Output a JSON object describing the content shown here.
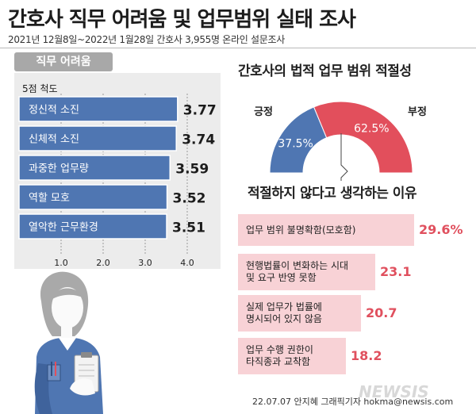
{
  "header": {
    "title": "간호사 직무 어려움 및 업무범위 실태 조사",
    "subtitle": "2021년 12월8일~2022년 1월28일 간호사 3,955명 온라인 설문조사"
  },
  "chart_data": [
    {
      "type": "bar",
      "title": "직무 어려움",
      "subtitle": "5점 척도",
      "orientation": "horizontal",
      "categories": [
        "정신적 소진",
        "신체적 소진",
        "과중한 업무량",
        "역할 모호",
        "열악한 근무환경"
      ],
      "values": [
        3.77,
        3.74,
        3.59,
        3.52,
        3.51
      ],
      "value_labels": [
        "3.77",
        "3.74",
        "3.59",
        "3.52",
        "3.51"
      ],
      "xlim": [
        0,
        4.0
      ],
      "ticks": [
        "1.0",
        "2.0",
        "3.0",
        "4.0"
      ],
      "grid": true,
      "colors": {
        "bar": "#4f76b2",
        "bar_border": "#ffffff",
        "panel": "#ececec"
      }
    },
    {
      "type": "pie",
      "shape": "half-donut gauge",
      "title": "간호사의 법적 업무 범위 적절성",
      "categories": [
        "긍정",
        "부정"
      ],
      "values": [
        37.5,
        62.5
      ],
      "value_labels": [
        "37.5%",
        "62.5%"
      ],
      "colors": {
        "긍정": "#4f76b2",
        "부정": "#e24f5c"
      }
    },
    {
      "type": "bar",
      "title": "적절하지 않다고 생각하는 이유",
      "orientation": "horizontal",
      "categories": [
        [
          "업무 범위 불명확함(모호함)"
        ],
        [
          "현행법률이 변화하는 시대",
          "및 요구 반영 못함"
        ],
        [
          "실제 업무가 법률에",
          "명시되어 있지 않음"
        ],
        [
          "업무 수행 권한이",
          "타직종과 교착함"
        ]
      ],
      "values": [
        29.6,
        23.1,
        20.7,
        18.2
      ],
      "value_labels": [
        "29.6%",
        "23.1",
        "20.7",
        "18.2"
      ],
      "colors": {
        "bar": "#f8d2d6",
        "value": "#e0505e"
      }
    }
  ],
  "footer": {
    "credit": "22.07.07 안지혜 그래픽기자 hokma@newsis.com",
    "logo": "NEWSIS"
  },
  "illustration": {
    "subject": "nurse",
    "icon": "nurse-illustration"
  }
}
